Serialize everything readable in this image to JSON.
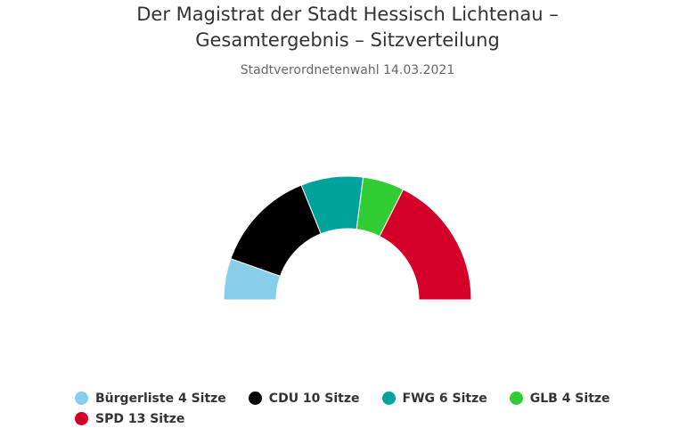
{
  "chart_data": {
    "type": "pie",
    "variant": "parliament-semicircle",
    "title_lines": [
      "Der Magistrat der Stadt Hessisch Lichtenau –",
      "Gesamtergebnis – Sitzverteilung"
    ],
    "subtitle": "Stadtverordnetenwahl 14.03.2021",
    "legend_placement": "bottom",
    "series": [
      {
        "name": "Bürgerliste",
        "seats": 4,
        "color": "#87ceeb"
      },
      {
        "name": "CDU",
        "seats": 10,
        "color": "#000000"
      },
      {
        "name": "FWG",
        "seats": 6,
        "color": "#00a39b"
      },
      {
        "name": "GLB",
        "seats": 4,
        "color": "#32cd32"
      },
      {
        "name": "SPD",
        "seats": 13,
        "color": "#d5002a"
      }
    ]
  },
  "legend": [
    {
      "label": "Bürgerliste 4 Sitze",
      "color": "#87ceeb"
    },
    {
      "label": "CDU 10 Sitze",
      "color": "#000000"
    },
    {
      "label": "FWG 6 Sitze",
      "color": "#00a39b"
    },
    {
      "label": "GLB 4 Sitze",
      "color": "#32cd32"
    },
    {
      "label": "SPD 13 Sitze",
      "color": "#d5002a"
    }
  ]
}
